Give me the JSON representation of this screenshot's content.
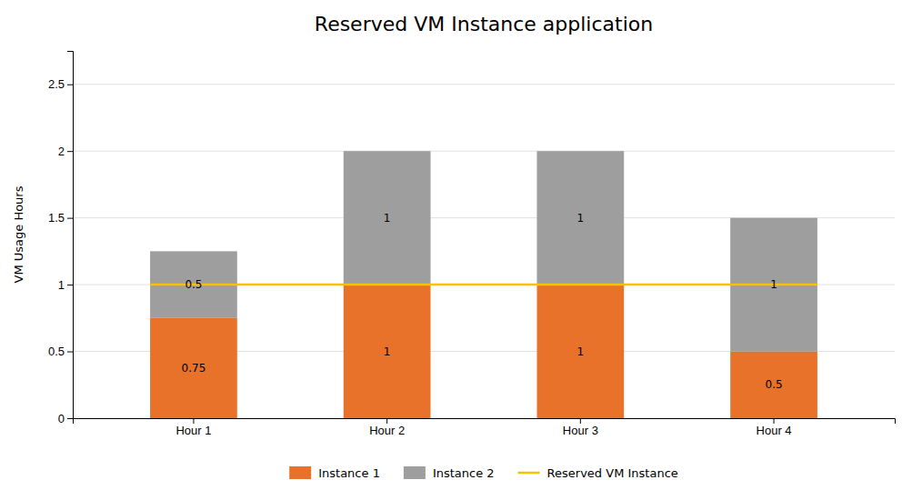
{
  "chart_data": {
    "type": "bar",
    "title": "Reserved VM Instance application",
    "ylabel": "VM Usage Hours",
    "categories": [
      "Hour 1",
      "Hour 2",
      "Hour 3",
      "Hour 4"
    ],
    "series": [
      {
        "name": "Instance 1",
        "color": "#E8722A",
        "values": [
          0.75,
          1.0,
          1.0,
          0.5
        ]
      },
      {
        "name": "Instance 2",
        "color": "#9E9E9E",
        "values": [
          0.5,
          1.0,
          1.0,
          1.0
        ]
      }
    ],
    "reference_line": {
      "name": "Reserved VM Instance",
      "color": "#F5C400",
      "value": 1.0
    },
    "stacked": true,
    "data_labels": true,
    "ylim": [
      0,
      2.75
    ],
    "yticks": [
      0,
      0.5,
      1.0,
      1.5,
      2.0,
      2.5
    ],
    "grid": true,
    "legend": "bottom"
  }
}
